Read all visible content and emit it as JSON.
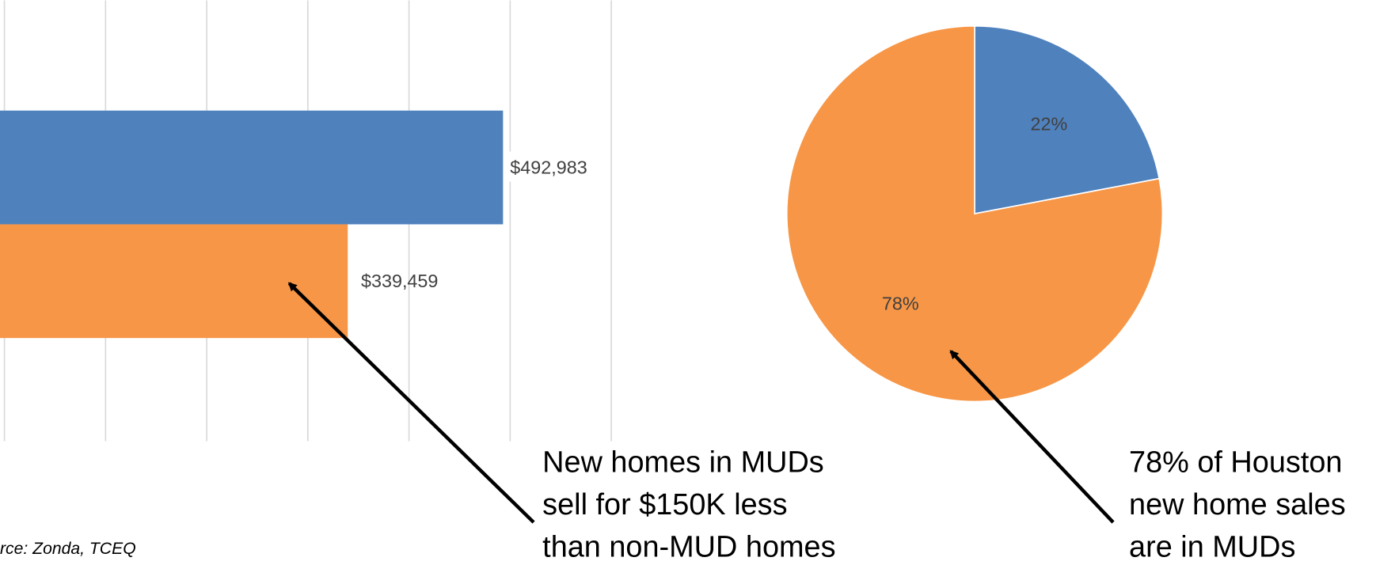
{
  "chart_data": [
    {
      "type": "bar",
      "orientation": "horizontal",
      "categories": [
        null,
        null
      ],
      "values": [
        492983,
        339459
      ],
      "value_labels": [
        "$492,983",
        "$339,459"
      ],
      "colors": [
        "#4f81bd",
        "#f79646"
      ],
      "xlim": [
        0,
        600000
      ],
      "xticks": [
        0,
        100000,
        200000,
        300000,
        400000,
        500000,
        600000
      ],
      "grid": true
    },
    {
      "type": "pie",
      "values": [
        22,
        78
      ],
      "value_labels": [
        "22%",
        "78%"
      ],
      "colors": [
        "#4f81bd",
        "#f79646"
      ]
    }
  ],
  "annotations": [
    {
      "lines": [
        "New homes in MUDs",
        "sell for $150K less",
        "than non-MUD homes"
      ]
    },
    {
      "lines": [
        "78% of Houston",
        "new home sales",
        "are in MUDs"
      ]
    }
  ],
  "source": "rce: Zonda, TCEQ"
}
